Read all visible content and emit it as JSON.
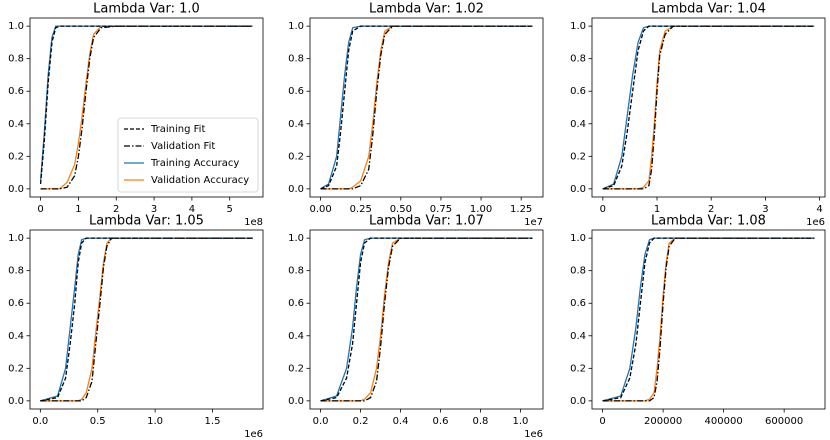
{
  "chart_data": [
    {
      "type": "line",
      "title": "Lambda Var: 1.0",
      "x_offset": "1e8",
      "x": [
        0,
        0.1,
        0.2,
        0.3,
        0.4,
        0.5,
        0.7,
        0.9,
        1.0,
        1.1,
        1.2,
        1.3,
        1.4,
        1.6,
        2.0,
        5.6
      ],
      "xlim": [
        -0.28,
        5.88
      ],
      "xticks": [
        0,
        1,
        2,
        3,
        4,
        5
      ],
      "ylim": [
        -0.05,
        1.05
      ],
      "yticks": [
        {
          "value": 0,
          "label": "0.0"
        },
        {
          "value": 0.2,
          "label": "0.2"
        },
        {
          "value": 0.4,
          "label": "0.4"
        },
        {
          "value": 0.6,
          "label": "0.6"
        },
        {
          "value": 0.8,
          "label": "0.8"
        },
        {
          "value": 1,
          "label": "1.0"
        }
      ],
      "legend": "lower right",
      "series": [
        {
          "name": "Training Fit",
          "color": "#000000",
          "dash": "dashed",
          "values": [
            0.03,
            0.3,
            0.65,
            0.9,
            0.99,
            1,
            1,
            1,
            1,
            1,
            1,
            1,
            1,
            1,
            1,
            1
          ]
        },
        {
          "name": "Validation Fit",
          "color": "#000000",
          "dash": "dashdot",
          "values": [
            0,
            0,
            0,
            0,
            0,
            0,
            0.01,
            0.08,
            0.2,
            0.38,
            0.6,
            0.8,
            0.93,
            0.99,
            1,
            1
          ]
        },
        {
          "name": "Training Accuracy",
          "color": "#1f77b4",
          "dash": "solid",
          "values": [
            0.05,
            0.35,
            0.7,
            0.93,
            1,
            1,
            1,
            1,
            1,
            1,
            1,
            1,
            1,
            1,
            1,
            1
          ]
        },
        {
          "name": "Validation Accuracy",
          "color": "#ff7f0e",
          "dash": "solid",
          "values": [
            0,
            0,
            0,
            0,
            0,
            0,
            0.04,
            0.15,
            0.28,
            0.45,
            0.65,
            0.83,
            0.95,
            1,
            1,
            1
          ]
        }
      ]
    },
    {
      "type": "line",
      "title": "Lambda Var: 1.02",
      "x_offset": "1e7",
      "x": [
        0,
        0.05,
        0.1,
        0.125,
        0.15,
        0.175,
        0.2,
        0.25,
        0.3,
        0.325,
        0.35,
        0.375,
        0.4,
        0.45,
        0.5,
        1.32
      ],
      "xlim": [
        -0.066,
        1.386
      ],
      "xticks": [
        {
          "value": 0,
          "label": "0.00"
        },
        {
          "value": 0.25,
          "label": "0.25"
        },
        {
          "value": 0.5,
          "label": "0.50"
        },
        {
          "value": 0.75,
          "label": "0.75"
        },
        {
          "value": 1,
          "label": "1.00"
        },
        {
          "value": 1.25,
          "label": "1.25"
        }
      ],
      "ylim": [
        -0.05,
        1.05
      ],
      "yticks": [
        {
          "value": 0,
          "label": "0.0"
        },
        {
          "value": 0.2,
          "label": "0.2"
        },
        {
          "value": 0.4,
          "label": "0.4"
        },
        {
          "value": 0.6,
          "label": "0.6"
        },
        {
          "value": 0.8,
          "label": "0.8"
        },
        {
          "value": 1,
          "label": "1.0"
        }
      ],
      "series": [
        {
          "name": "Training Fit",
          "color": "#000000",
          "dash": "dashed",
          "values": [
            0,
            0.02,
            0.14,
            0.35,
            0.6,
            0.85,
            0.97,
            1,
            1,
            1,
            1,
            1,
            1,
            1,
            1,
            1
          ]
        },
        {
          "name": "Validation Fit",
          "color": "#000000",
          "dash": "dashdot",
          "values": [
            0,
            0,
            0,
            0,
            0,
            0,
            0,
            0.02,
            0.12,
            0.33,
            0.6,
            0.82,
            0.95,
            1,
            1,
            1
          ]
        },
        {
          "name": "Training Accuracy",
          "color": "#1f77b4",
          "dash": "solid",
          "values": [
            0,
            0.03,
            0.2,
            0.45,
            0.7,
            0.9,
            0.99,
            1,
            1,
            1,
            1,
            1,
            1,
            1,
            1,
            1
          ]
        },
        {
          "name": "Validation Accuracy",
          "color": "#ff7f0e",
          "dash": "solid",
          "values": [
            0,
            0,
            0,
            0,
            0,
            0,
            0.01,
            0.05,
            0.2,
            0.4,
            0.65,
            0.85,
            0.97,
            1,
            1,
            1
          ]
        }
      ]
    },
    {
      "type": "line",
      "title": "Lambda Var: 1.04",
      "x_offset": "1e6",
      "x": [
        0,
        0.2,
        0.35,
        0.45,
        0.55,
        0.65,
        0.75,
        0.85,
        0.9,
        0.95,
        1.0,
        1.05,
        1.15,
        1.3,
        1.5,
        3.9
      ],
      "xlim": [
        -0.2,
        4.1
      ],
      "xticks": [
        0,
        1,
        2,
        3,
        4
      ],
      "ylim": [
        -0.05,
        1.05
      ],
      "yticks": [
        {
          "value": 0,
          "label": "0.0"
        },
        {
          "value": 0.2,
          "label": "0.2"
        },
        {
          "value": 0.4,
          "label": "0.4"
        },
        {
          "value": 0.6,
          "label": "0.6"
        },
        {
          "value": 0.8,
          "label": "0.8"
        },
        {
          "value": 1,
          "label": "1.0"
        }
      ],
      "series": [
        {
          "name": "Training Fit",
          "color": "#000000",
          "dash": "dashed",
          "values": [
            0,
            0.02,
            0.14,
            0.35,
            0.6,
            0.85,
            0.97,
            1,
            1,
            1,
            1,
            1,
            1,
            1,
            1,
            1
          ]
        },
        {
          "name": "Validation Fit",
          "color": "#000000",
          "dash": "dashdot",
          "values": [
            0,
            0,
            0,
            0,
            0,
            0,
            0,
            0.02,
            0.12,
            0.33,
            0.6,
            0.82,
            0.95,
            1,
            1,
            1
          ]
        },
        {
          "name": "Training Accuracy",
          "color": "#1f77b4",
          "dash": "solid",
          "values": [
            0,
            0.03,
            0.2,
            0.45,
            0.7,
            0.9,
            0.99,
            1,
            1,
            1,
            1,
            1,
            1,
            1,
            1,
            1
          ]
        },
        {
          "name": "Validation Accuracy",
          "color": "#ff7f0e",
          "dash": "solid",
          "values": [
            0,
            0,
            0,
            0,
            0,
            0,
            0.01,
            0.05,
            0.2,
            0.4,
            0.65,
            0.85,
            0.97,
            1,
            1,
            1
          ]
        }
      ]
    },
    {
      "type": "line",
      "title": "Lambda Var: 1.05",
      "x_offset": "1e6",
      "x": [
        0,
        0.15,
        0.22,
        0.26,
        0.3,
        0.33,
        0.36,
        0.4,
        0.45,
        0.48,
        0.52,
        0.55,
        0.58,
        0.62,
        0.7,
        1.85
      ],
      "xlim": [
        -0.09,
        1.94
      ],
      "xticks": [
        {
          "value": 0,
          "label": "0.0"
        },
        {
          "value": 0.5,
          "label": "0.5"
        },
        {
          "value": 1,
          "label": "1.0"
        },
        {
          "value": 1.5,
          "label": "1.5"
        }
      ],
      "ylim": [
        -0.05,
        1.05
      ],
      "yticks": [
        {
          "value": 0,
          "label": "0.0"
        },
        {
          "value": 0.2,
          "label": "0.2"
        },
        {
          "value": 0.4,
          "label": "0.4"
        },
        {
          "value": 0.6,
          "label": "0.6"
        },
        {
          "value": 0.8,
          "label": "0.8"
        },
        {
          "value": 1,
          "label": "1.0"
        }
      ],
      "series": [
        {
          "name": "Training Fit",
          "color": "#000000",
          "dash": "dashed",
          "values": [
            0,
            0.02,
            0.14,
            0.35,
            0.6,
            0.85,
            0.97,
            1,
            1,
            1,
            1,
            1,
            1,
            1,
            1,
            1
          ]
        },
        {
          "name": "Validation Fit",
          "color": "#000000",
          "dash": "dashdot",
          "values": [
            0,
            0,
            0,
            0,
            0,
            0,
            0,
            0.02,
            0.12,
            0.33,
            0.6,
            0.82,
            0.95,
            1,
            1,
            1
          ]
        },
        {
          "name": "Training Accuracy",
          "color": "#1f77b4",
          "dash": "solid",
          "values": [
            0,
            0.03,
            0.2,
            0.45,
            0.7,
            0.9,
            0.99,
            1,
            1,
            1,
            1,
            1,
            1,
            1,
            1,
            1
          ]
        },
        {
          "name": "Validation Accuracy",
          "color": "#ff7f0e",
          "dash": "solid",
          "values": [
            0,
            0,
            0,
            0,
            0,
            0,
            0.01,
            0.05,
            0.2,
            0.4,
            0.65,
            0.85,
            0.97,
            1,
            1,
            1
          ]
        }
      ]
    },
    {
      "type": "line",
      "title": "Lambda Var: 1.07",
      "x_offset": "1e6",
      "x": [
        0,
        0.08,
        0.13,
        0.16,
        0.18,
        0.2,
        0.22,
        0.25,
        0.28,
        0.3,
        0.32,
        0.34,
        0.36,
        0.4,
        0.45,
        1.06
      ],
      "xlim": [
        -0.053,
        1.113
      ],
      "xticks": [
        {
          "value": 0,
          "label": "0.0"
        },
        {
          "value": 0.2,
          "label": "0.2"
        },
        {
          "value": 0.4,
          "label": "0.4"
        },
        {
          "value": 0.6,
          "label": "0.6"
        },
        {
          "value": 0.8,
          "label": "0.8"
        },
        {
          "value": 1,
          "label": "1.0"
        }
      ],
      "ylim": [
        -0.05,
        1.05
      ],
      "yticks": [
        {
          "value": 0,
          "label": "0.0"
        },
        {
          "value": 0.2,
          "label": "0.2"
        },
        {
          "value": 0.4,
          "label": "0.4"
        },
        {
          "value": 0.6,
          "label": "0.6"
        },
        {
          "value": 0.8,
          "label": "0.8"
        },
        {
          "value": 1,
          "label": "1.0"
        }
      ],
      "series": [
        {
          "name": "Training Fit",
          "color": "#000000",
          "dash": "dashed",
          "values": [
            0,
            0.02,
            0.14,
            0.35,
            0.6,
            0.85,
            0.97,
            1,
            1,
            1,
            1,
            1,
            1,
            1,
            1,
            1
          ]
        },
        {
          "name": "Validation Fit",
          "color": "#000000",
          "dash": "dashdot",
          "values": [
            0,
            0,
            0,
            0,
            0,
            0,
            0,
            0.02,
            0.12,
            0.33,
            0.6,
            0.82,
            0.95,
            1,
            1,
            1
          ]
        },
        {
          "name": "Training Accuracy",
          "color": "#1f77b4",
          "dash": "solid",
          "values": [
            0,
            0.03,
            0.2,
            0.45,
            0.7,
            0.9,
            0.99,
            1,
            1,
            1,
            1,
            1,
            1,
            1,
            1,
            1
          ]
        },
        {
          "name": "Validation Accuracy",
          "color": "#ff7f0e",
          "dash": "solid",
          "values": [
            0,
            0,
            0,
            0,
            0,
            0,
            0.01,
            0.05,
            0.2,
            0.4,
            0.65,
            0.85,
            0.97,
            1,
            1,
            1
          ]
        }
      ]
    },
    {
      "type": "line",
      "title": "Lambda Var: 1.08",
      "x": [
        0,
        60000,
        90000,
        110000,
        125000,
        140000,
        155000,
        170000,
        180000,
        190000,
        200000,
        210000,
        220000,
        240000,
        270000,
        700000
      ],
      "xlim": [
        -35000,
        735000
      ],
      "xticks": [
        0,
        200000,
        400000,
        600000
      ],
      "ylim": [
        -0.05,
        1.05
      ],
      "yticks": [
        {
          "value": 0,
          "label": "0.0"
        },
        {
          "value": 0.2,
          "label": "0.2"
        },
        {
          "value": 0.4,
          "label": "0.4"
        },
        {
          "value": 0.6,
          "label": "0.6"
        },
        {
          "value": 0.8,
          "label": "0.8"
        },
        {
          "value": 1,
          "label": "1.0"
        }
      ],
      "series": [
        {
          "name": "Training Fit",
          "color": "#000000",
          "dash": "dashed",
          "values": [
            0,
            0.02,
            0.14,
            0.35,
            0.6,
            0.85,
            0.97,
            1,
            1,
            1,
            1,
            1,
            1,
            1,
            1,
            1
          ]
        },
        {
          "name": "Validation Fit",
          "color": "#000000",
          "dash": "dashdot",
          "values": [
            0,
            0,
            0,
            0,
            0,
            0,
            0,
            0.02,
            0.12,
            0.33,
            0.6,
            0.82,
            0.95,
            1,
            1,
            1
          ]
        },
        {
          "name": "Training Accuracy",
          "color": "#1f77b4",
          "dash": "solid",
          "values": [
            0,
            0.03,
            0.2,
            0.45,
            0.7,
            0.9,
            0.99,
            1,
            1,
            1,
            1,
            1,
            1,
            1,
            1,
            1
          ]
        },
        {
          "name": "Validation Accuracy",
          "color": "#ff7f0e",
          "dash": "solid",
          "values": [
            0,
            0,
            0,
            0,
            0,
            0,
            0.01,
            0.05,
            0.2,
            0.4,
            0.65,
            0.85,
            0.97,
            1,
            1,
            1
          ]
        }
      ]
    }
  ]
}
